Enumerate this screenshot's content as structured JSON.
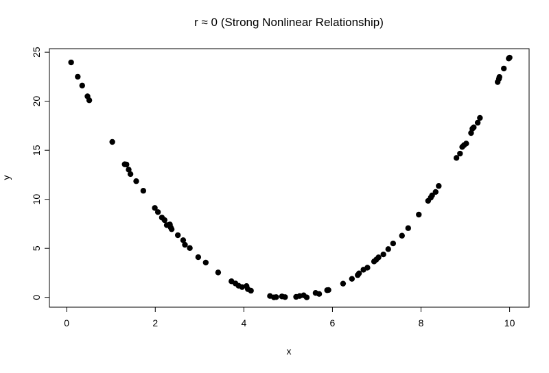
{
  "chart_data": {
    "type": "scatter",
    "title": "r ≈ 0 (Strong Nonlinear Relationship)",
    "xlabel": "x",
    "ylabel": "y",
    "xlim": [
      -0.39,
      10.44
    ],
    "ylim": [
      -1.0,
      25.36
    ],
    "xticks": [
      0,
      2,
      4,
      6,
      8,
      10
    ],
    "yticks": [
      0,
      5,
      10,
      15,
      20,
      25
    ],
    "grid": false,
    "point_color": "#000000",
    "points": [
      [
        0.1,
        23.96
      ],
      [
        0.25,
        22.5
      ],
      [
        0.35,
        21.6
      ],
      [
        0.47,
        20.5
      ],
      [
        0.51,
        20.1
      ],
      [
        1.03,
        15.85
      ],
      [
        1.31,
        13.57
      ],
      [
        1.35,
        13.55
      ],
      [
        1.4,
        13.03
      ],
      [
        1.44,
        12.57
      ],
      [
        1.57,
        11.85
      ],
      [
        1.73,
        10.87
      ],
      [
        1.99,
        9.12
      ],
      [
        2.06,
        8.7
      ],
      [
        2.15,
        8.14
      ],
      [
        2.21,
        7.88
      ],
      [
        2.26,
        7.37
      ],
      [
        2.33,
        7.44
      ],
      [
        2.35,
        7.13
      ],
      [
        2.37,
        6.95
      ],
      [
        2.51,
        6.34
      ],
      [
        2.63,
        5.83
      ],
      [
        2.67,
        5.36
      ],
      [
        2.78,
        5.03
      ],
      [
        2.97,
        4.1
      ],
      [
        3.14,
        3.55
      ],
      [
        3.42,
        2.54
      ],
      [
        3.72,
        1.64
      ],
      [
        3.81,
        1.42
      ],
      [
        3.88,
        1.19
      ],
      [
        3.96,
        1.05
      ],
      [
        4.06,
        1.15
      ],
      [
        4.09,
        0.84
      ],
      [
        4.16,
        0.68
      ],
      [
        4.59,
        0.14
      ],
      [
        4.68,
        0.0
      ],
      [
        4.73,
        0.03
      ],
      [
        4.86,
        0.1
      ],
      [
        4.93,
        0.03
      ],
      [
        5.18,
        0.05
      ],
      [
        5.26,
        0.14
      ],
      [
        5.35,
        0.21
      ],
      [
        5.42,
        0.0
      ],
      [
        5.62,
        0.45
      ],
      [
        5.7,
        0.35
      ],
      [
        5.88,
        0.73
      ],
      [
        5.91,
        0.75
      ],
      [
        6.24,
        1.4
      ],
      [
        6.44,
        1.89
      ],
      [
        6.57,
        2.27
      ],
      [
        6.6,
        2.45
      ],
      [
        6.7,
        2.82
      ],
      [
        6.79,
        3.03
      ],
      [
        6.94,
        3.66
      ],
      [
        6.99,
        3.85
      ],
      [
        7.04,
        4.08
      ],
      [
        7.15,
        4.38
      ],
      [
        7.26,
        4.92
      ],
      [
        7.37,
        5.5
      ],
      [
        7.57,
        6.29
      ],
      [
        7.71,
        7.06
      ],
      [
        7.95,
        8.44
      ],
      [
        8.16,
        9.84
      ],
      [
        8.22,
        10.17
      ],
      [
        8.25,
        10.4
      ],
      [
        8.33,
        10.75
      ],
      [
        8.4,
        11.36
      ],
      [
        8.8,
        14.22
      ],
      [
        8.88,
        14.66
      ],
      [
        8.93,
        15.34
      ],
      [
        8.97,
        15.52
      ],
      [
        9.02,
        15.69
      ],
      [
        9.13,
        16.76
      ],
      [
        9.16,
        17.2
      ],
      [
        9.19,
        17.34
      ],
      [
        9.28,
        17.81
      ],
      [
        9.33,
        18.3
      ],
      [
        9.73,
        21.96
      ],
      [
        9.76,
        22.29
      ],
      [
        9.77,
        22.48
      ],
      [
        9.87,
        23.34
      ],
      [
        9.98,
        24.36
      ],
      [
        10.0,
        24.45
      ]
    ]
  }
}
